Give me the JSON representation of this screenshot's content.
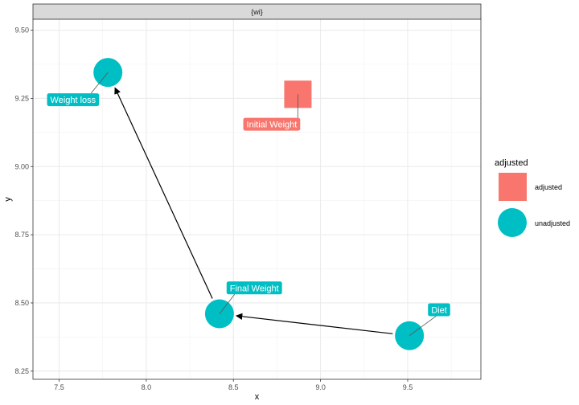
{
  "chart_data": {
    "type": "scatter",
    "facet_label": "{wi}",
    "xlabel": "x",
    "ylabel": "y",
    "xlim": [
      7.35,
      9.92
    ],
    "ylim": [
      8.22,
      9.54
    ],
    "x_ticks": [
      7.5,
      8.0,
      8.5,
      9.0,
      9.5
    ],
    "x_tick_labels": [
      "7.5",
      "8.0",
      "8.5",
      "9.0",
      "9.5"
    ],
    "y_ticks": [
      8.25,
      8.5,
      8.75,
      9.0,
      9.25,
      9.5
    ],
    "y_tick_labels": [
      "8.25",
      "8.50",
      "8.75",
      "9.00",
      "9.25",
      "9.50"
    ],
    "grid": true,
    "legend": {
      "title": "adjusted",
      "placement": "right",
      "entries": [
        {
          "label": "adjusted",
          "shape": "square",
          "color": "#F8766D"
        },
        {
          "label": "unadjusted",
          "shape": "circle",
          "color": "#00BFC4"
        }
      ]
    },
    "points": [
      {
        "label": "Initial Weight",
        "x": 8.87,
        "y": 9.265,
        "group": "adjusted",
        "shape": "square",
        "color": "#F8766D",
        "label_x": 8.72,
        "label_y": 9.155
      },
      {
        "label": "Weight loss",
        "x": 7.78,
        "y": 9.345,
        "group": "unadjusted",
        "shape": "circle",
        "color": "#00BFC4",
        "label_x": 7.58,
        "label_y": 9.245
      },
      {
        "label": "Final Weight",
        "x": 8.42,
        "y": 8.46,
        "group": "unadjusted",
        "shape": "circle",
        "color": "#00BFC4",
        "label_x": 8.62,
        "label_y": 8.555
      },
      {
        "label": "Diet",
        "x": 9.51,
        "y": 8.38,
        "group": "unadjusted",
        "shape": "circle",
        "color": "#00BFC4",
        "label_x": 9.68,
        "label_y": 8.475
      }
    ],
    "arrows": [
      {
        "from": "Diet",
        "to": "Final Weight"
      },
      {
        "from": "Final Weight",
        "to": "Weight loss"
      }
    ]
  }
}
